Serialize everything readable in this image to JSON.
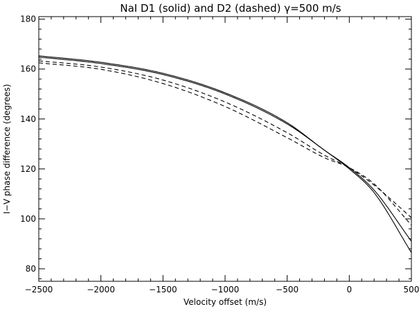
{
  "chart_data": {
    "type": "line",
    "title": "NaI D1 (solid) and D2 (dashed) γ=500 m/s",
    "xlabel": "Velocity offset (m/s)",
    "ylabel": "I−V phase difference (degrees)",
    "xlim": [
      -2500,
      500
    ],
    "ylim": [
      75,
      181
    ],
    "x_ticks": [
      -2500,
      -2000,
      -1500,
      -1000,
      -500,
      0,
      500
    ],
    "x_tick_labels": [
      "−2500",
      "−2000",
      "−1500",
      "−1000",
      "−500",
      "0",
      "500"
    ],
    "y_ticks": [
      80,
      100,
      120,
      140,
      160,
      180
    ],
    "y_tick_labels": [
      "80",
      "100",
      "120",
      "140",
      "160",
      "180"
    ],
    "grid": false,
    "legend": "none",
    "series": [
      {
        "style": "solid",
        "color": "#000000",
        "x": [
          -2500,
          -2000,
          -1500,
          -1000,
          -500,
          -200,
          0,
          200,
          500
        ],
        "y": [
          165.3,
          162.7,
          158.3,
          150.5,
          138.5,
          127.5,
          120.5,
          111.5,
          91.0
        ]
      },
      {
        "style": "solid",
        "color": "#000000",
        "x": [
          -2500,
          -2000,
          -1500,
          -1000,
          -500,
          -200,
          0,
          200,
          500
        ],
        "y": [
          164.8,
          162.2,
          157.8,
          150.0,
          138.0,
          127.5,
          120.0,
          110.5,
          86.5
        ]
      },
      {
        "style": "dashed",
        "color": "#000000",
        "x": [
          -2500,
          -2000,
          -1500,
          -1000,
          -500,
          -200,
          0,
          200,
          500
        ],
        "y": [
          163.3,
          160.8,
          155.6,
          146.8,
          134.5,
          125.5,
          120.5,
          113.5,
          100.5
        ]
      },
      {
        "style": "dashed",
        "color": "#000000",
        "x": [
          -2500,
          -2000,
          -1500,
          -1000,
          -500,
          -200,
          0,
          200,
          500
        ],
        "y": [
          162.5,
          159.9,
          154.2,
          145.0,
          132.5,
          124.5,
          120.5,
          114.0,
          97.5
        ]
      }
    ]
  }
}
